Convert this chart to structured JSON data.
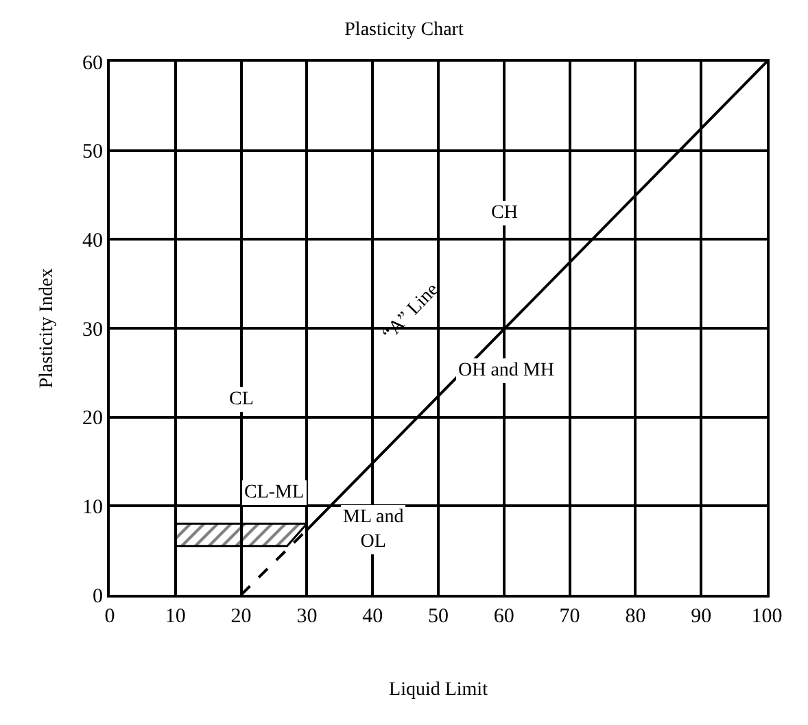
{
  "chart_data": {
    "type": "line",
    "title": "Plasticity Chart",
    "xlabel": "Liquid Limit",
    "ylabel": "Plasticity Index",
    "xlim": [
      0,
      100
    ],
    "xticks": [
      0,
      10,
      20,
      30,
      40,
      50,
      60,
      70,
      80,
      90,
      100
    ],
    "ylim": [
      0,
      60
    ],
    "yticks": [
      0,
      10,
      20,
      30,
      40,
      50,
      60
    ],
    "grid": true,
    "marker": "none",
    "series": [
      {
        "color": "#000000",
        "line_style": "dashed",
        "x": [
          20,
          30
        ],
        "values": [
          0,
          7.3
        ]
      },
      {
        "color": "#000000",
        "line_style": "solid",
        "x": [
          30,
          100
        ],
        "values": [
          7.3,
          60
        ]
      },
      {
        "type": "area",
        "color": "#000000",
        "x": [
          10,
          27,
          30,
          10,
          10
        ],
        "values": [
          5.5,
          5.5,
          8,
          8,
          5.5
        ]
      }
    ],
    "annotations": [
      {
        "text": "CH",
        "x": 60,
        "y": 43
      },
      "OH and MH",
      {
        "text": "CL",
        "x": 20,
        "y": 22
      },
      "CL-ML",
      "ML and\nOL",
      "“A” Line"
    ]
  }
}
